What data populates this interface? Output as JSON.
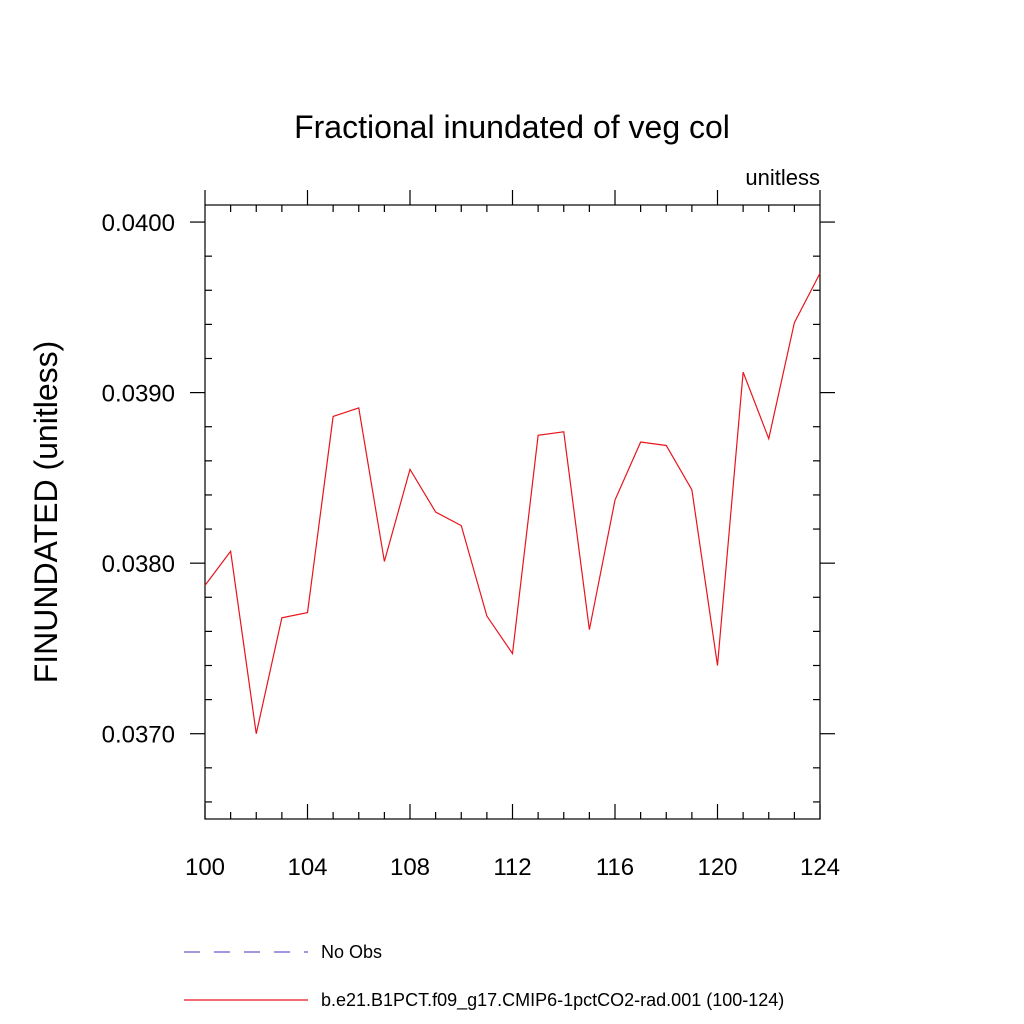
{
  "chart_data": {
    "type": "line",
    "title": "Fractional inundated of veg col",
    "units_label": "unitless",
    "xlabel": "",
    "ylabel": "FINUNDATED  (unitless)",
    "xlim": [
      100,
      124
    ],
    "ylim": [
      0.0365,
      0.0401
    ],
    "x_major_ticks": [
      100,
      104,
      108,
      112,
      116,
      120,
      124
    ],
    "x_tick_labels": [
      "100",
      "104",
      "108",
      "112",
      "116",
      "120",
      "124"
    ],
    "x_minor_step": 1,
    "y_major_ticks": [
      0.037,
      0.038,
      0.039,
      0.04
    ],
    "y_tick_labels": [
      "0.0370",
      "0.0380",
      "0.0390",
      "0.0400"
    ],
    "y_minor_step": 0.0002,
    "grid": false,
    "legend_position": "bottom",
    "legend": [
      {
        "label": "No Obs",
        "color": "#6a5acd",
        "style": "dashed"
      },
      {
        "label": "b.e21.B1PCT.f09_g17.CMIP6-1pctCO2-rad.001 (100-124)",
        "color": "#e8141c",
        "style": "solid"
      }
    ],
    "series": [
      {
        "name": "b.e21.B1PCT.f09_g17.CMIP6-1pctCO2-rad.001 (100-124)",
        "color": "#e8141c",
        "x": [
          100,
          101,
          102,
          103,
          104,
          105,
          106,
          107,
          108,
          109,
          110,
          111,
          112,
          113,
          114,
          115,
          116,
          117,
          118,
          119,
          120,
          121,
          122,
          123,
          124
        ],
        "values": [
          0.03787,
          0.03807,
          0.037,
          0.03768,
          0.03771,
          0.03886,
          0.03891,
          0.03801,
          0.03855,
          0.0383,
          0.03822,
          0.03769,
          0.03747,
          0.03875,
          0.03877,
          0.03761,
          0.03837,
          0.03871,
          0.03869,
          0.03843,
          0.0374,
          0.03912,
          0.03873,
          0.03941,
          0.0397
        ]
      }
    ]
  }
}
